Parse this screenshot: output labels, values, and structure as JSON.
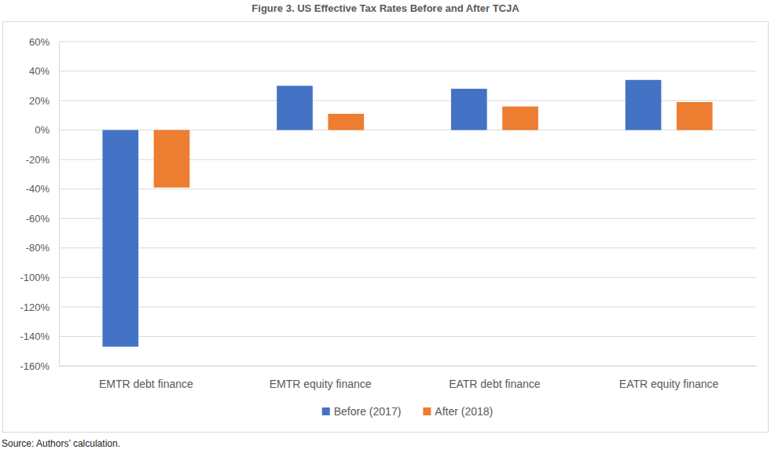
{
  "chart_data": {
    "type": "bar",
    "title": "Figure 3. US Effective Tax Rates Before and After TCJA",
    "source": "Source: Authors’ calculation.",
    "categories": [
      "EMTR debt finance",
      "EMTR equity finance",
      "EATR debt finance",
      "EATR equity finance"
    ],
    "series": [
      {
        "name": "Before (2017)",
        "color": "#4472c4",
        "values": [
          -147,
          30,
          28,
          34
        ]
      },
      {
        "name": "After (2018)",
        "color": "#ed7d31",
        "values": [
          -39,
          11,
          16,
          19
        ]
      }
    ],
    "ylim": [
      -160,
      60
    ],
    "yticks": [
      {
        "value": -160,
        "label": "-160%"
      },
      {
        "value": -140,
        "label": "-140%"
      },
      {
        "value": -120,
        "label": "-120%"
      },
      {
        "value": -100,
        "label": "-100%"
      },
      {
        "value": -80,
        "label": "-80%"
      },
      {
        "value": -60,
        "label": "-60%"
      },
      {
        "value": -40,
        "label": "-40%"
      },
      {
        "value": -20,
        "label": "-20%"
      },
      {
        "value": 0,
        "label": "0%"
      },
      {
        "value": 20,
        "label": "20%"
      },
      {
        "value": 40,
        "label": "40%"
      },
      {
        "value": 60,
        "label": "60%"
      }
    ],
    "grid": true,
    "legend": "bottom"
  }
}
